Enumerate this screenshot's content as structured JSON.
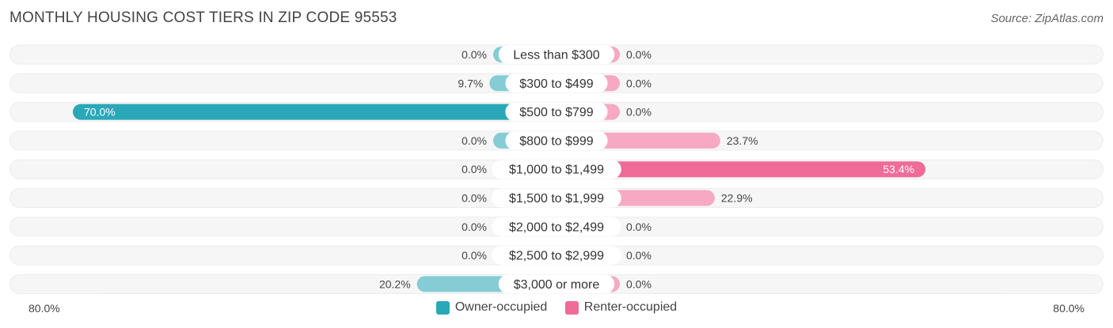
{
  "title": "MONTHLY HOUSING COST TIERS IN ZIP CODE 95553",
  "source": "Source: ZipAtlas.com",
  "colors": {
    "owner_dark": "#2aa8b8",
    "owner_light": "#85ccd5",
    "renter_dark": "#f06b97",
    "renter_light": "#f7a8c2",
    "row_bg": "#f1f1f1"
  },
  "legend": {
    "owner_label": "Owner-occupied",
    "renter_label": "Renter-occupied"
  },
  "axis": {
    "left_label": "80.0%",
    "right_label": "80.0%"
  },
  "chart_data": {
    "type": "bar",
    "orientation": "horizontal-diverging",
    "categories": [
      "Less than $300",
      "$300 to $499",
      "$500 to $799",
      "$800 to $999",
      "$1,000 to $1,499",
      "$1,500 to $1,999",
      "$2,000 to $2,499",
      "$2,500 to $2,999",
      "$3,000 or more"
    ],
    "series": [
      {
        "name": "Owner-occupied",
        "values": [
          0.0,
          9.7,
          70.0,
          0.0,
          0.0,
          0.0,
          0.0,
          0.0,
          20.2
        ],
        "labels": [
          "0.0%",
          "9.7%",
          "70.0%",
          "0.0%",
          "0.0%",
          "0.0%",
          "0.0%",
          "0.0%",
          "20.2%"
        ]
      },
      {
        "name": "Renter-occupied",
        "values": [
          0.0,
          0.0,
          0.0,
          23.7,
          53.4,
          22.9,
          0.0,
          0.0,
          0.0
        ],
        "labels": [
          "0.0%",
          "0.0%",
          "0.0%",
          "23.7%",
          "53.4%",
          "22.9%",
          "0.0%",
          "0.0%",
          "0.0%"
        ]
      }
    ],
    "xlim": [
      -80,
      80
    ],
    "legend_position": "bottom-center",
    "grid": false
  }
}
